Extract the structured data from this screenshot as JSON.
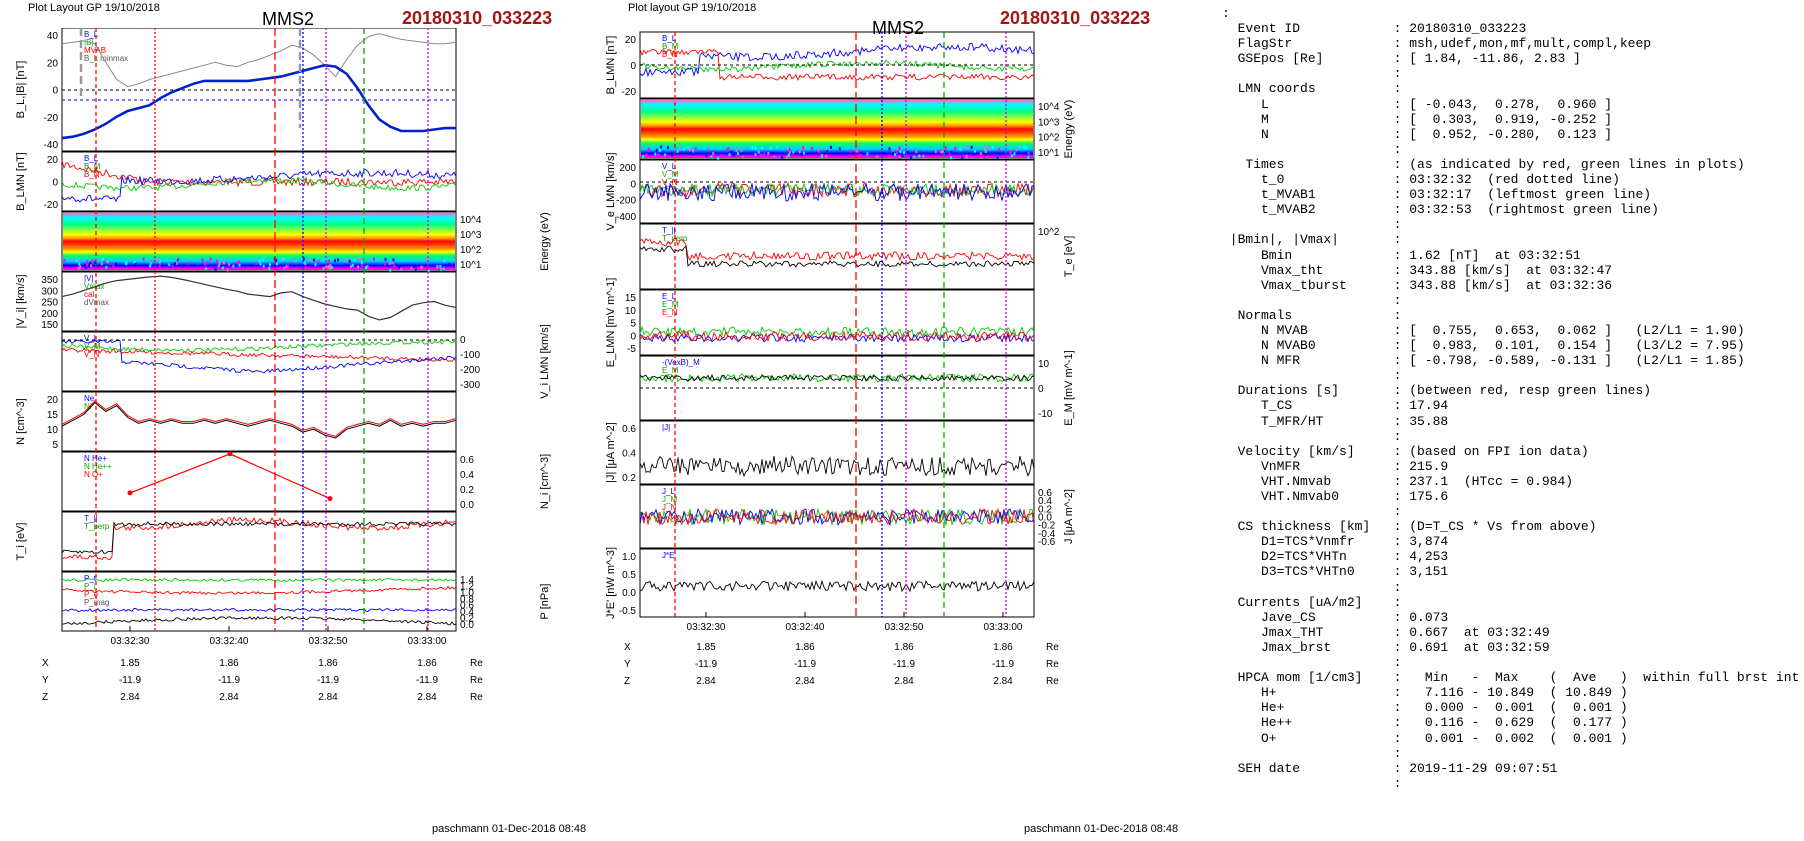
{
  "left": {
    "header_left": "Plot Layout GP 19/10/2018",
    "spacecraft": "MMS2",
    "event": "20180310_033223",
    "footer": "paschmann 01-Dec-2018 08:48",
    "time_ticks": [
      "03:32:30",
      "03:32:40",
      "03:32:50",
      "03:33:00"
    ],
    "coords": {
      "rows": [
        "X",
        "Y",
        "Z"
      ],
      "values": [
        [
          "1.85",
          "1.86",
          "1.86",
          "1.86"
        ],
        [
          "-11.9",
          "-11.9",
          "-11.9",
          "-11.9"
        ],
        [
          "2.84",
          "2.84",
          "2.84",
          "2.84"
        ]
      ],
      "unit": "Re"
    },
    "panels": [
      {
        "ylabel": "B_L,|B| [nT]",
        "ticks": [
          "40",
          "20",
          "0",
          "-20",
          "-40"
        ],
        "legend": [
          "B_L",
          "|B|",
          "MVAB",
          "B_L minmax",
          "B_L 50% of Bt",
          "B_L brst",
          "|B|"
        ]
      },
      {
        "ylabel": "B_LMN [nT]",
        "ticks": [
          "20",
          "0",
          "-20"
        ],
        "legend": [
          "B_L",
          "B_M",
          "B_N"
        ]
      },
      {
        "ylabel": "Energy (eV)",
        "ticks": [
          "10^4",
          "10^3",
          "10^2",
          "10^1"
        ]
      },
      {
        "ylabel": "|V_i| [km/s]",
        "ticks": [
          "350",
          "300",
          "250",
          "200",
          "150"
        ],
        "legend": [
          "|V|",
          "Vmax",
          "cal",
          "dVmax"
        ]
      },
      {
        "ylabel": "V_i LMN [km/s]",
        "ticks": [
          "0",
          "-100",
          "-200",
          "-300"
        ],
        "legend": [
          "V_L",
          "V_M",
          "V_N"
        ]
      },
      {
        "ylabel": "N [cm^-3]",
        "ticks": [
          "20",
          "15",
          "10",
          "5"
        ],
        "legend": [
          "Ne",
          "Ni"
        ]
      },
      {
        "ylabel": "N_i [cm^-3]",
        "ticks": [
          "0.6",
          "0.4",
          "0.2",
          "0.0"
        ],
        "legend": [
          "N He+",
          "N He++",
          "N O+"
        ]
      },
      {
        "ylabel": "T_i [eV]",
        "legend": [
          "T_||",
          "T_perp"
        ]
      },
      {
        "ylabel": "P [nPa]",
        "ticks": [
          "1.4",
          "1.2",
          "1.0",
          "0.8",
          "0.6",
          "0.4",
          "0.2",
          "0.0"
        ],
        "legend": [
          "P_t",
          "P_i",
          "P_e",
          "P_mag"
        ]
      }
    ]
  },
  "right": {
    "header_left": "Plot layout GP 19/10/2018",
    "spacecraft": "MMS2",
    "event": "20180310_033223",
    "footer": "paschmann 01-Dec-2018 08:48",
    "time_ticks": [
      "03:32:30",
      "03:32:40",
      "03:32:50",
      "03:33:00"
    ],
    "coords": {
      "rows": [
        "X",
        "Y",
        "Z"
      ],
      "values": [
        [
          "1.85",
          "1.86",
          "1.86",
          "1.86"
        ],
        [
          "-11.9",
          "-11.9",
          "-11.9",
          "-11.9"
        ],
        [
          "2.84",
          "2.84",
          "2.84",
          "2.84"
        ]
      ],
      "unit": "Re"
    },
    "panels": [
      {
        "ylabel": "B_LMN [nT]",
        "ticks": [
          "20",
          "0",
          "-20"
        ],
        "legend": [
          "B_L",
          "B_M",
          "B_N"
        ]
      },
      {
        "ylabel": "Energy (eV)",
        "ticks": [
          "10^4",
          "10^3",
          "10^2",
          "10^1"
        ]
      },
      {
        "ylabel": "V_e LMN [km/s]",
        "ticks": [
          "200",
          "0",
          "-200",
          "-400"
        ],
        "legend": [
          "V_L",
          "V_M",
          "V_N"
        ]
      },
      {
        "ylabel": "T_e [eV]",
        "ticks": [
          "10^2"
        ],
        "legend": [
          "T_||",
          "T_perp"
        ]
      },
      {
        "ylabel": "E_LMN [mV m^-1]",
        "ticks": [
          "15",
          "10",
          "5",
          "0",
          "-5"
        ],
        "legend": [
          "E_L",
          "E_M",
          "E_N"
        ]
      },
      {
        "ylabel": "E_M [mV m^-1]",
        "ticks": [
          "10",
          "0",
          "-10"
        ],
        "legend": [
          "-(VexB)_M",
          "E_M"
        ]
      },
      {
        "ylabel": "|J| [μA m^-2]",
        "ticks": [
          "0.6",
          "0.4",
          "0.2"
        ],
        "legend": [
          "|J|"
        ]
      },
      {
        "ylabel": "J [μA m^-2]",
        "ticks": [
          "0.6",
          "0.4",
          "0.2",
          "0.0",
          "-0.2",
          "-0.4",
          "-0.6"
        ],
        "legend": [
          "J_L",
          "J_M",
          "J_N",
          "|J|"
        ]
      },
      {
        "ylabel": "J*E' [nW m^-3]",
        "ticks": [
          "1.0",
          "0.5",
          "0.0",
          "-0.5"
        ],
        "legend": [
          "J*E'"
        ]
      }
    ]
  },
  "info_lines": [
    ":",
    "  Event ID            : 20180310_033223",
    "  FlagStr             : msh,udef,mon,mf,mult,compl,keep",
    "  GSEpos [Re]         : [ 1.84, -11.86, 2.83 ]",
    "                      :",
    "  LMN coords          :",
    "     L                : [ -0.043,  0.278,  0.960 ]",
    "     M                : [  0.303,  0.919, -0.252 ]",
    "     N                : [  0.952, -0.280,  0.123 ]",
    "                      :",
    "   Times              : (as indicated by red, green lines in plots)",
    "     t_0              : 03:32:32  (red dotted line)",
    "     t_MVAB1          : 03:32:17  (leftmost green line)",
    "     t_MVAB2          : 03:32:53  (rightmost green line)",
    "                      :",
    " |Bmin|, |Vmax|       :",
    "     Bmin             : 1.62 [nT]  at 03:32:51",
    "     Vmax_tht         : 343.88 [km/s]  at 03:32:47",
    "     Vmax_tburst      : 343.88 [km/s]  at 03:32:36",
    "                      :",
    "  Normals             :",
    "     N MVAB           : [  0.755,  0.653,  0.062 ]   (L2/L1 = 1.90)",
    "     N MVAB0          : [  0.983,  0.101,  0.154 ]   (L3/L2 = 7.95)",
    "     N MFR            : [ -0.798, -0.589, -0.131 ]   (L2/L1 = 1.85)",
    "                      :",
    "  Durations [s]       : (between red, resp green lines)",
    "     T_CS             : 17.94",
    "     T_MFR/HT         : 35.88",
    "                      :",
    "  Velocity [km/s]     : (based on FPI ion data)",
    "     VnMFR            : 215.9",
    "     VHT.Nmvab        : 237.1  (HTcc = 0.984)",
    "     VHT.Nmvab0       : 175.6",
    "                      :",
    "  CS thickness [km]   : (D=T_CS * Vs from above)",
    "     D1=TCS*Vnmfr     : 3,874",
    "     D2=TCS*VHTn      : 4,253",
    "     D3=TCS*VHTn0     : 3,151",
    "                      :",
    "  Currents [uA/m2]    :",
    "     Jave_CS          : 0.073",
    "     Jmax_THT         : 0.667  at 03:32:49",
    "     Jmax_brst        : 0.691  at 03:32:59",
    "                      :",
    "  HPCA mom [1/cm3]    :   Min   -  Max    (  Ave   )  within full brst int",
    "     H+               :   7.116 - 10.849  ( 10.849 )",
    "     He+              :   0.000 -  0.001  (  0.001 )",
    "     He++             :   0.116 -  0.629  (  0.177 )",
    "     O+               :   0.001 -  0.002  (  0.001 )",
    "                      :",
    "  SEH date            : 2019-11-29 09:07:51",
    "                      :"
  ],
  "chart_data": [
    {
      "type": "line",
      "title": "MMS2  20180310_033223",
      "xlabel": "",
      "x_ticks": [
        "03:32:30",
        "03:32:40",
        "03:32:50",
        "03:33:00"
      ],
      "series": [
        {
          "name": "B_L",
          "panel": "B_L,|B| [nT]",
          "values": [
            -33,
            -32,
            -30,
            -27,
            -23,
            -18,
            -14,
            -12,
            -10,
            -5,
            -1,
            2,
            5,
            7,
            7,
            7,
            7,
            7,
            8,
            9,
            10,
            12,
            14,
            16,
            18,
            17,
            12,
            2,
            -10,
            -20,
            -25,
            -28,
            -28,
            -28,
            -27,
            -26,
            -26
          ]
        },
        {
          "name": "|B|",
          "panel": "B_L,|B| [nT]",
          "values": [
            33,
            34,
            35,
            33,
            20,
            8,
            3,
            5,
            8,
            10,
            12,
            14,
            16,
            18,
            20,
            18,
            17,
            20,
            22,
            25,
            28,
            32,
            30,
            25,
            18,
            10,
            22,
            32,
            38,
            40,
            38,
            36,
            35,
            34,
            33,
            33,
            34
          ]
        },
        {
          "name": "|V_i|",
          "panel": "|V_i| [km/s]",
          "values": [
            260,
            270,
            285,
            300,
            315,
            325,
            330,
            335,
            340,
            343,
            338,
            330,
            320,
            310,
            300,
            290,
            282,
            270,
            265,
            260,
            275,
            280,
            260,
            245,
            230,
            220,
            210,
            205,
            180,
            165,
            175,
            200,
            225,
            235,
            240,
            225,
            215
          ]
        },
        {
          "name": "Ni",
          "panel": "N [cm^-3]",
          "values": [
            12,
            14,
            16,
            20,
            17,
            19,
            15,
            13,
            14,
            13,
            14,
            13,
            13,
            14,
            13,
            14,
            13,
            12,
            13,
            14,
            13,
            12,
            10,
            11,
            9,
            8,
            11,
            12,
            13,
            12,
            14,
            12,
            13,
            12,
            13,
            13,
            14
          ]
        },
        {
          "name": "N He++",
          "panel": "N_i [cm^-3]",
          "values": [
            0.19,
            0.6,
            0.13
          ]
        }
      ]
    }
  ]
}
